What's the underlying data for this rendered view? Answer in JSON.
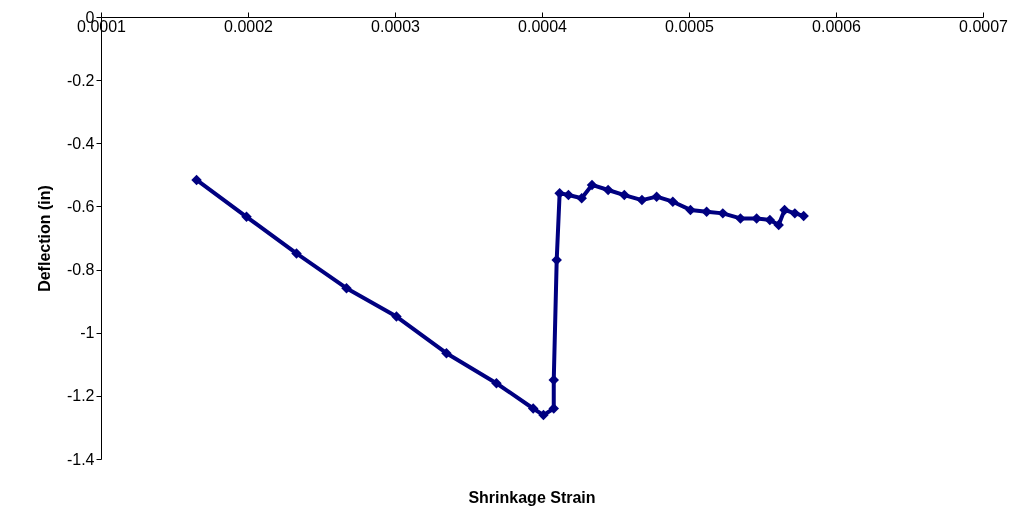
{
  "chart_data": {
    "type": "line",
    "xlabel": "Shrinkage Strain",
    "ylabel": "Deflection (in)",
    "x": [
      0.000165,
      0.000199,
      0.000233,
      0.000267,
      0.000301,
      0.000335,
      0.000369,
      0.000394,
      0.000401,
      0.000408,
      0.000408,
      0.00041,
      0.000412,
      0.000418,
      0.000427,
      0.000434,
      0.000445,
      0.000456,
      0.000468,
      0.000478,
      0.000489,
      0.000501,
      0.000512,
      0.000523,
      0.000535,
      0.000546,
      0.000555,
      0.000561,
      0.000565,
      0.000572,
      0.000578
    ],
    "series": [
      {
        "color": "#000080",
        "values": [
          -0.516,
          -0.633,
          -0.749,
          -0.859,
          -0.949,
          -1.065,
          -1.16,
          -1.24,
          -1.261,
          -1.24,
          -1.15,
          -0.77,
          -0.558,
          -0.564,
          -0.574,
          -0.532,
          -0.548,
          -0.564,
          -0.58,
          -0.569,
          -0.585,
          -0.611,
          -0.617,
          -0.622,
          -0.638,
          -0.638,
          -0.643,
          -0.659,
          -0.611,
          -0.622,
          -0.63
        ]
      }
    ],
    "xlim": [
      0.0001,
      0.0007
    ],
    "xticks": [
      0.0001,
      0.0002,
      0.0003,
      0.0004,
      0.0005,
      0.0006,
      0.0007
    ],
    "ylim": [
      -1.4,
      0
    ],
    "yticks": [
      0,
      -0.2,
      -0.4,
      -0.6,
      -0.8,
      -1,
      -1.2,
      -1.4
    ],
    "grid": false,
    "marker": "diamond",
    "line_style": "solid"
  }
}
